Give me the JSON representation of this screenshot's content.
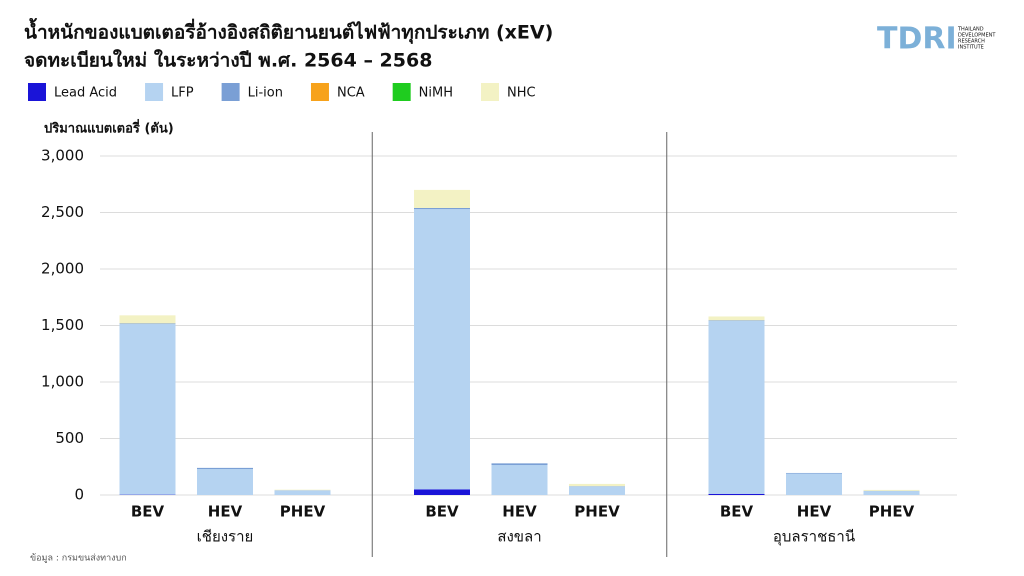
{
  "chart_data": {
    "type": "stacked_bar",
    "title": "น้ำหนักของแบตเตอรี่อ้างอิงสถิติยานยนต์ไฟฟ้าทุกประเภท (xEV)",
    "subtitle": "จดทะเบียนใหม่ ในระหว่างปี พ.ศ. 2564 – 2568",
    "y_label": "ปริมาณแบตเตอรี่ (ตัน)",
    "categories": [
      "BEV",
      "HEV",
      "PHEV",
      "BEV",
      "HEV",
      "PHEV",
      "BEV",
      "HEV",
      "PHEV"
    ],
    "groups": [
      "เชียงราย",
      "สงขลา",
      "อุบลราชธานี"
    ],
    "series": [
      {
        "name": "Lead Acid",
        "color": "#1a14d8",
        "values": [
          3,
          0,
          0,
          50,
          0,
          0,
          10,
          0,
          0
        ]
      },
      {
        "name": "LFP",
        "color": "#b5d3f1",
        "values": [
          1510,
          230,
          40,
          2480,
          265,
          75,
          1530,
          190,
          35
        ]
      },
      {
        "name": "Li-ion",
        "color": "#7a9fd5",
        "values": [
          5,
          10,
          2,
          10,
          15,
          3,
          5,
          5,
          2
        ]
      },
      {
        "name": "NCA",
        "color": "#f7a21b",
        "values": [
          0,
          0,
          0,
          0,
          0,
          0,
          0,
          0,
          0
        ]
      },
      {
        "name": "NiMH",
        "color": "#1fcc1f",
        "values": [
          0,
          0,
          0,
          0,
          0,
          0,
          0,
          0,
          0
        ]
      },
      {
        "name": "NHC",
        "color": "#f3f2c4",
        "values": [
          72,
          0,
          5,
          160,
          0,
          20,
          35,
          0,
          8
        ]
      }
    ],
    "ylim": [
      0,
      3000
    ],
    "yticks": [
      0,
      500,
      {
        "value": 1000,
        "label": "1,000"
      },
      {
        "value": 1500,
        "label": "1,500"
      },
      {
        "value": 2000,
        "label": "2,000"
      },
      {
        "value": 2500,
        "label": "2,500"
      },
      {
        "value": 3000,
        "label": "3,000"
      }
    ],
    "grid": true,
    "source": "ข้อมูล : กรมขนส่งทางบก"
  },
  "logo": {
    "name": "TDRI",
    "lines": [
      "THAILAND",
      "DEVELOPMENT",
      "RESEARCH",
      "INSTITUTE"
    ]
  }
}
